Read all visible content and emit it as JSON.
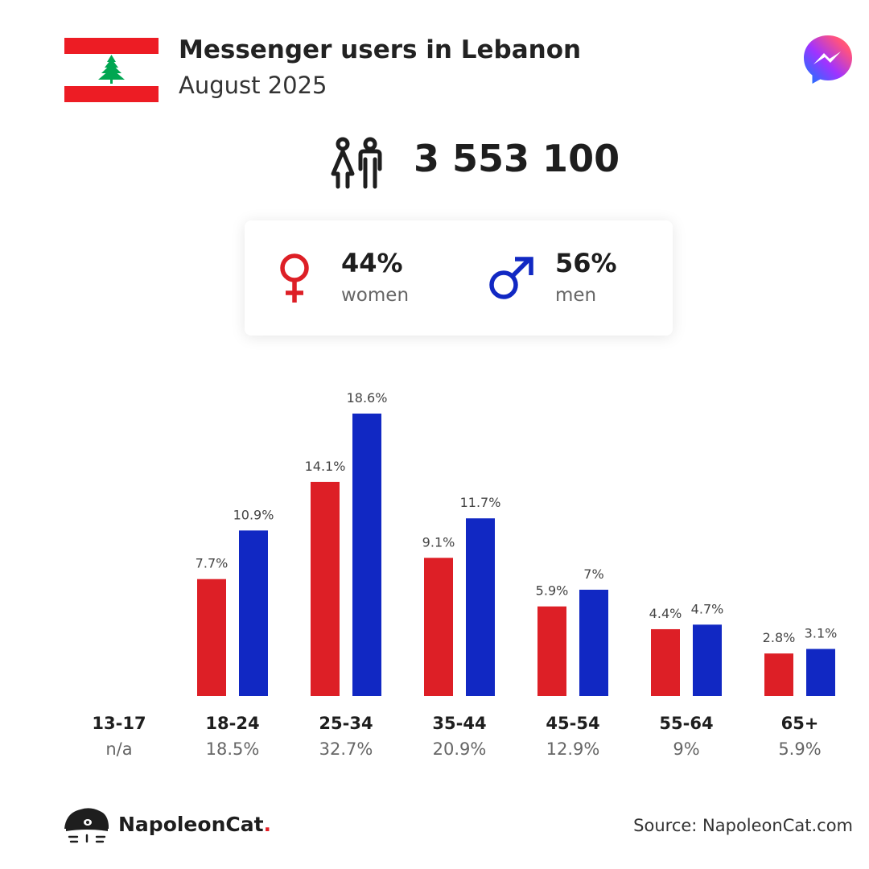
{
  "header": {
    "title": "Messenger users in Lebanon",
    "subtitle": "August 2025"
  },
  "total_users": "3 553 100",
  "gender": {
    "women": {
      "percent": "44%",
      "label": "women"
    },
    "men": {
      "percent": "56%",
      "label": "men"
    }
  },
  "colors": {
    "women": "#dd1f26",
    "men": "#1128c3",
    "flag_red": "#ed1c24",
    "cedar_green": "#00a651",
    "card_shadow": "#e6e6e6"
  },
  "icons": [
    "lebanon-flag-icon",
    "messenger-logo-icon",
    "people-icon",
    "female-symbol-icon",
    "male-symbol-icon",
    "napoleoncat-logo-icon"
  ],
  "chart_data": {
    "type": "bar",
    "categories": [
      "13-17",
      "18-24",
      "25-34",
      "35-44",
      "45-54",
      "55-64",
      "65+"
    ],
    "category_totals": [
      "n/a",
      "18.5%",
      "32.7%",
      "20.9%",
      "12.9%",
      "9%",
      "5.9%"
    ],
    "series": [
      {
        "name": "women",
        "values": [
          null,
          7.7,
          14.1,
          9.1,
          5.9,
          4.4,
          2.8
        ],
        "labels": [
          "",
          "7.7%",
          "14.1%",
          "9.1%",
          "5.9%",
          "4.4%",
          "2.8%"
        ]
      },
      {
        "name": "men",
        "values": [
          null,
          10.9,
          18.6,
          11.7,
          7.0,
          4.7,
          3.1
        ],
        "labels": [
          "",
          "10.9%",
          "18.6%",
          "11.7%",
          "7%",
          "4.7%",
          "3.1%"
        ]
      }
    ],
    "ylim": [
      0,
      18.6
    ],
    "grid": false,
    "legend": "none"
  },
  "footer": {
    "brand": "NapoleonCat",
    "brand_dot": ".",
    "source": "Source: NapoleonCat.com"
  }
}
